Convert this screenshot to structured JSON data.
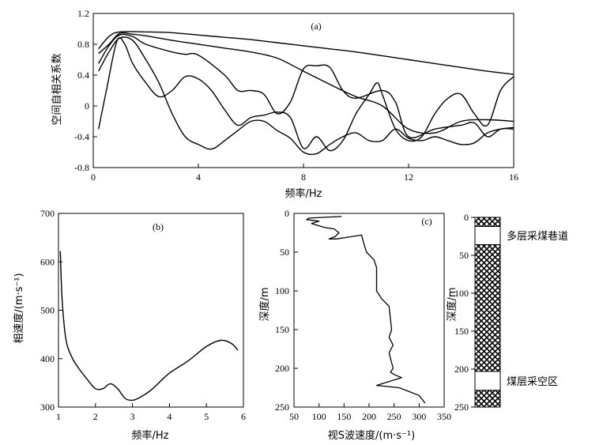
{
  "chart_data": [
    {
      "panel_label": "(a)",
      "type": "line",
      "xlabel": "频率/Hz",
      "ylabel": "空间自相关系数",
      "xlim": [
        0,
        16
      ],
      "ylim": [
        -0.8,
        1.2
      ],
      "xticks": [
        0,
        4,
        8,
        12,
        16
      ],
      "yticks": [
        -0.8,
        -0.4,
        0,
        0.4,
        0.8,
        1.2
      ],
      "ytick_labels": [
        "-0.8",
        "-0.4",
        "0",
        "0.4",
        "0.8",
        "1.2"
      ],
      "series": [
        {
          "x": [
            0.2,
            0.6,
            1.0,
            2,
            3,
            4,
            5,
            6,
            7,
            8,
            9,
            10,
            11,
            12,
            13,
            14,
            15,
            16
          ],
          "y": [
            0.74,
            0.9,
            0.96,
            0.96,
            0.95,
            0.92,
            0.89,
            0.86,
            0.82,
            0.78,
            0.74,
            0.7,
            0.65,
            0.6,
            0.55,
            0.5,
            0.45,
            0.41
          ]
        },
        {
          "x": [
            0.2,
            0.6,
            1.0,
            1.5,
            2,
            3,
            4,
            5,
            6,
            7,
            8,
            9,
            10,
            11,
            12,
            13,
            14,
            15,
            16
          ],
          "y": [
            0.68,
            0.8,
            0.94,
            0.93,
            0.91,
            0.85,
            0.8,
            0.75,
            0.7,
            0.62,
            0.45,
            0.28,
            0.12,
            0.0,
            -0.3,
            -0.35,
            -0.2,
            -0.18,
            -0.2
          ]
        },
        {
          "x": [
            0.2,
            0.6,
            1.0,
            1.5,
            2,
            3,
            3.5,
            4,
            5,
            5.5,
            6,
            6.5,
            7,
            7.5,
            8,
            8.5,
            9,
            9.5,
            10,
            11,
            11.5,
            12,
            13,
            14,
            14.5,
            15,
            15.5,
            16
          ],
          "y": [
            0.55,
            0.78,
            0.92,
            0.9,
            0.8,
            0.7,
            0.67,
            0.66,
            0.4,
            0.2,
            0.2,
            0.15,
            -0.1,
            0.05,
            0.48,
            0.52,
            0.5,
            0.2,
            0.1,
            0.2,
            0.05,
            -0.4,
            -0.3,
            -0.25,
            -0.22,
            -0.4,
            -0.3,
            -0.3
          ]
        },
        {
          "x": [
            0.2,
            0.5,
            0.9,
            1.2,
            1.5,
            2,
            2.5,
            3,
            3.5,
            4,
            4.5,
            5,
            5.5,
            6,
            6.5,
            7,
            7.5,
            8,
            8.5,
            9,
            9.5,
            10,
            10.5,
            10.8,
            11,
            11.5,
            12,
            12.5,
            13,
            13.5,
            14,
            14.5,
            15,
            15.5,
            16
          ],
          "y": [
            -0.3,
            0.2,
            0.84,
            0.8,
            0.55,
            0.3,
            0.12,
            0.2,
            0.38,
            0.35,
            0.2,
            -0.05,
            -0.25,
            -0.15,
            -0.12,
            -0.08,
            -0.15,
            -0.55,
            -0.4,
            -0.58,
            -0.45,
            -0.1,
            0.15,
            0.3,
            0.15,
            -0.3,
            -0.45,
            -0.4,
            -0.1,
            0.1,
            0.15,
            -0.1,
            -0.25,
            0.2,
            0.38
          ]
        },
        {
          "x": [
            0.2,
            0.6,
            1.0,
            1.5,
            2,
            2.5,
            3,
            3.5,
            4,
            4.5,
            5,
            5.5,
            6,
            6.5,
            7,
            7.5,
            8,
            8.5,
            9,
            9.5,
            10,
            10.5,
            11,
            11.5,
            12,
            12.5,
            13,
            13.5,
            14,
            14.5,
            15,
            15.5,
            16
          ],
          "y": [
            0.45,
            0.7,
            0.88,
            0.85,
            0.6,
            0.3,
            -0.1,
            -0.4,
            -0.5,
            -0.56,
            -0.45,
            -0.32,
            -0.2,
            -0.2,
            -0.32,
            -0.42,
            -0.6,
            -0.62,
            -0.5,
            -0.4,
            -0.35,
            -0.45,
            -0.45,
            -0.3,
            -0.42,
            -0.45,
            -0.4,
            -0.45,
            -0.5,
            -0.48,
            -0.35,
            -0.3,
            -0.28
          ]
        }
      ]
    },
    {
      "panel_label": "(b)",
      "type": "line",
      "xlabel": "频率/Hz",
      "ylabel": "相速度/(m·s⁻¹)",
      "xlim": [
        1,
        6
      ],
      "ylim": [
        300,
        700
      ],
      "xticks": [
        1,
        2,
        3,
        4,
        5,
        6
      ],
      "yticks": [
        300,
        400,
        500,
        600,
        700
      ],
      "series": [
        {
          "x": [
            1.05,
            1.1,
            1.2,
            1.35,
            1.5,
            1.8,
            2.0,
            2.2,
            2.4,
            2.6,
            2.8,
            3.0,
            3.2,
            3.5,
            4.0,
            4.5,
            5.0,
            5.4,
            5.7,
            5.85
          ],
          "y": [
            622,
            520,
            440,
            405,
            385,
            355,
            338,
            338,
            348,
            338,
            318,
            314,
            320,
            335,
            370,
            395,
            425,
            438,
            430,
            417
          ]
        }
      ]
    },
    {
      "panel_label": "(c)",
      "type": "line",
      "xlabel": "视S波速度/(m·s⁻¹)",
      "ylabel": "深度/m",
      "xlim": [
        50,
        350
      ],
      "ylim": [
        250,
        0
      ],
      "xticks": [
        50,
        100,
        150,
        200,
        250,
        300,
        350
      ],
      "yticks": [
        0,
        50,
        100,
        150,
        200,
        250
      ],
      "series": [
        {
          "x": [
            145,
            80,
            75,
            100,
            85,
            110,
            130,
            140,
            132,
            120,
            135,
            165,
            185,
            190,
            195,
            210,
            215,
            215,
            225,
            240,
            245,
            240,
            248,
            240,
            248,
            243,
            250,
            265,
            225,
            215,
            260,
            280,
            300,
            312
          ],
          "y": [
            4,
            6,
            8,
            10,
            13,
            18,
            20,
            25,
            30,
            33,
            33,
            30,
            28,
            40,
            50,
            60,
            70,
            100,
            110,
            120,
            150,
            160,
            170,
            180,
            200,
            205,
            208,
            212,
            220,
            222,
            225,
            230,
            235,
            245
          ]
        }
      ]
    }
  ],
  "column": {
    "ylabel": "深度/m",
    "yticks": [
      0,
      50,
      100,
      150,
      200,
      250
    ],
    "layers": [
      {
        "top": 0,
        "bottom": 12,
        "fill": "coal"
      },
      {
        "top": 12,
        "bottom": 36,
        "fill": "void",
        "label": "多层采煤巷道"
      },
      {
        "top": 36,
        "bottom": 203,
        "fill": "coal"
      },
      {
        "top": 203,
        "bottom": 228,
        "fill": "void",
        "label": "煤层采空区"
      },
      {
        "top": 228,
        "bottom": 250,
        "fill": "coal"
      }
    ]
  }
}
